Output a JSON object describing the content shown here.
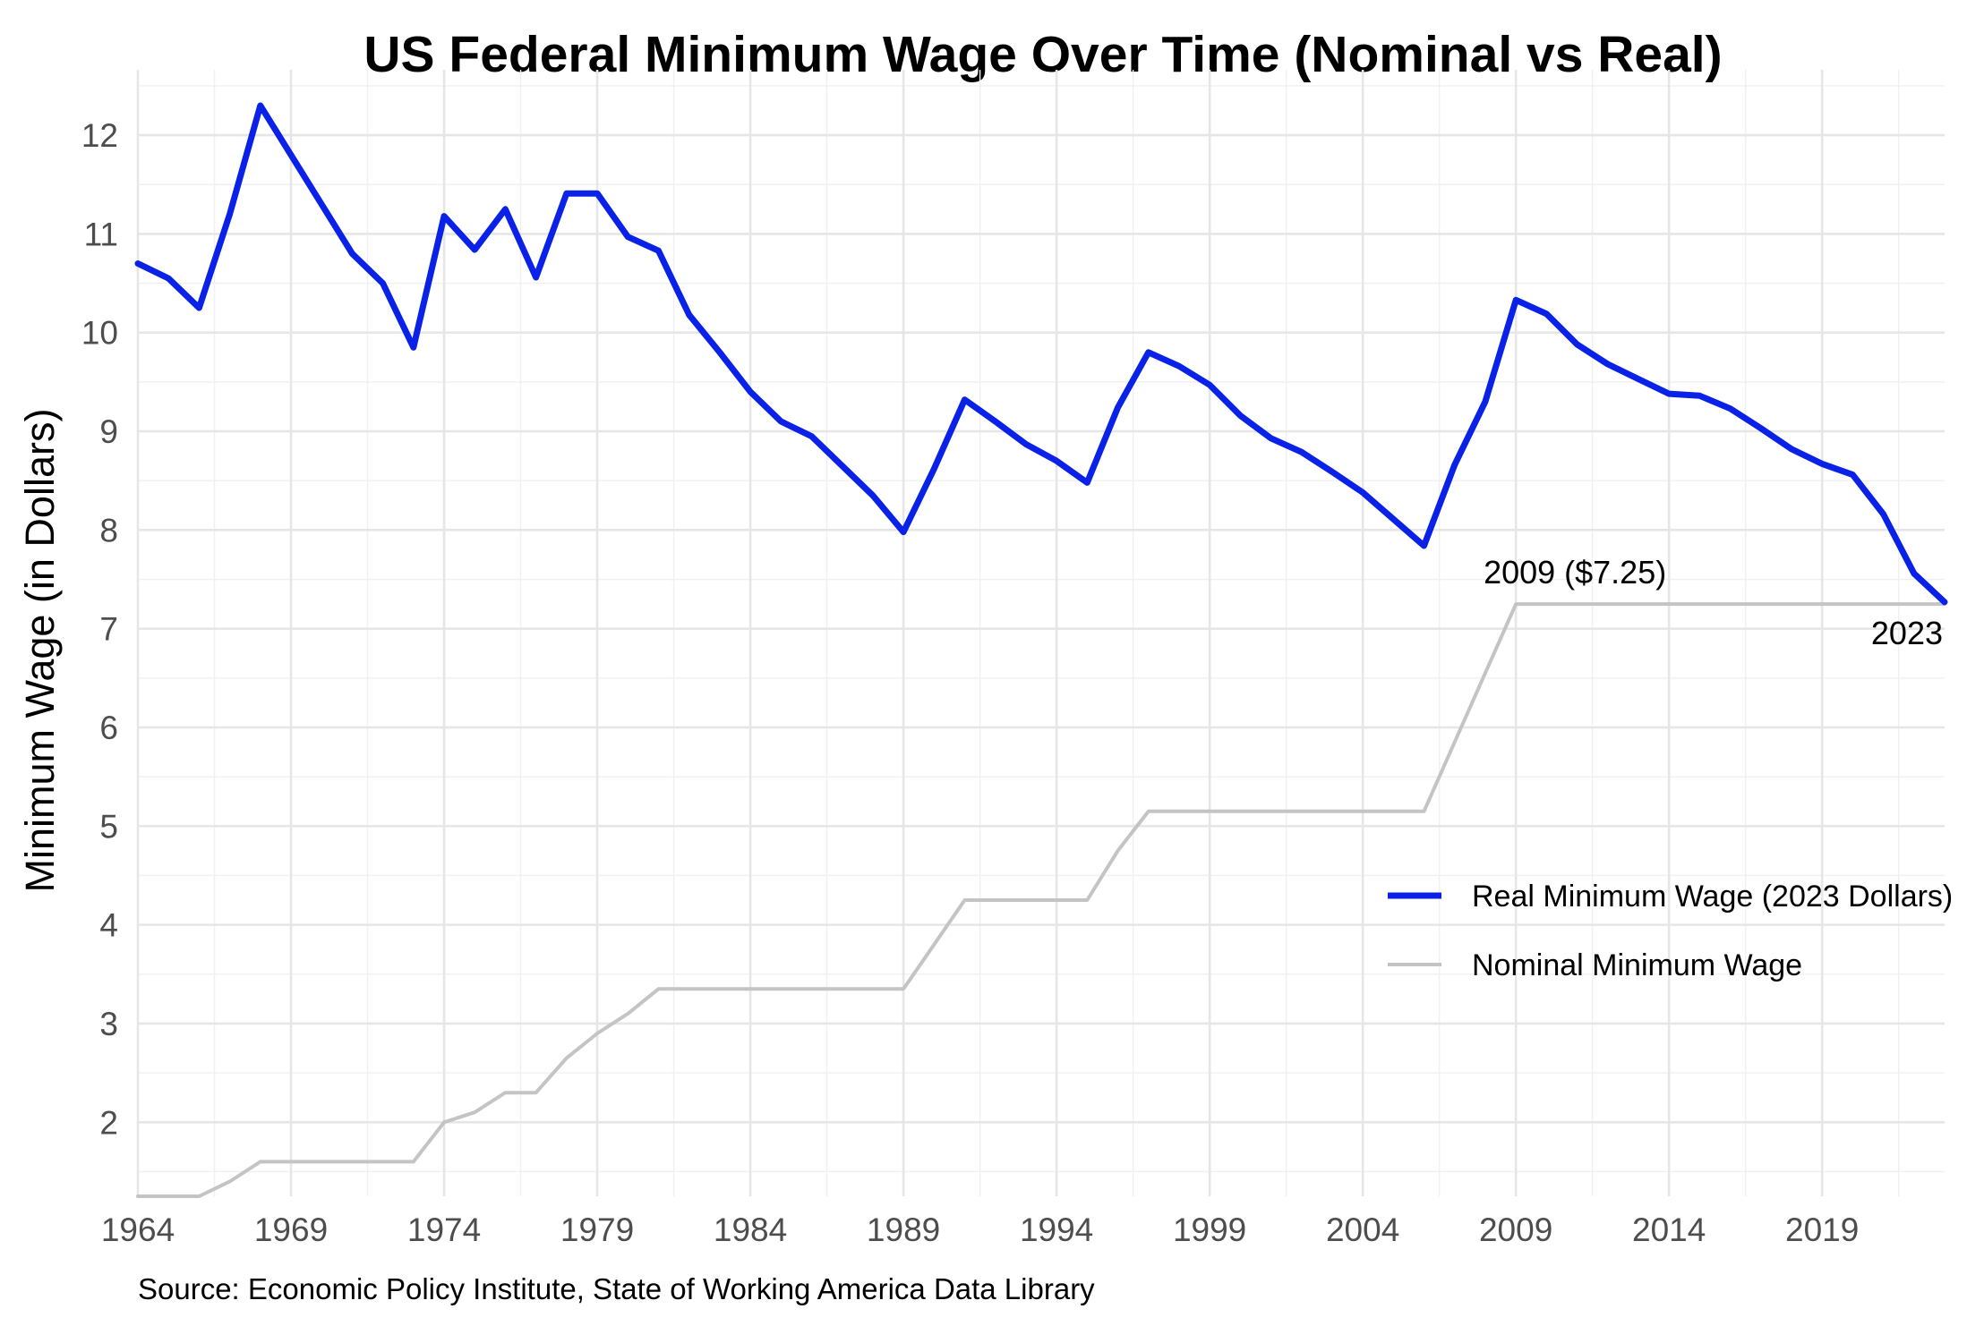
{
  "chart_data": {
    "type": "line",
    "title": "US Federal Minimum Wage Over Time (Nominal vs Real)",
    "ylabel": "Minimum Wage (in Dollars)",
    "xlabel": "",
    "caption": "Source: Economic Policy Institute, State of Working America Data Library",
    "xlim": [
      1964,
      2023
    ],
    "ylim": [
      1.25,
      12.3
    ],
    "x_ticks": [
      "1964",
      "1969",
      "1974",
      "1979",
      "1984",
      "1989",
      "1994",
      "1999",
      "2004",
      "2009",
      "2014",
      "2019"
    ],
    "y_ticks": [
      "2",
      "3",
      "4",
      "5",
      "6",
      "7",
      "8",
      "9",
      "10",
      "11",
      "12"
    ],
    "grid": true,
    "legend_position": "right",
    "x": [
      1964,
      1965,
      1966,
      1967,
      1968,
      1969,
      1970,
      1971,
      1972,
      1973,
      1974,
      1975,
      1976,
      1977,
      1978,
      1979,
      1980,
      1981,
      1982,
      1983,
      1984,
      1985,
      1986,
      1987,
      1988,
      1989,
      1990,
      1991,
      1992,
      1993,
      1994,
      1995,
      1996,
      1997,
      1998,
      1999,
      2000,
      2001,
      2002,
      2003,
      2004,
      2005,
      2006,
      2007,
      2008,
      2009,
      2010,
      2011,
      2012,
      2013,
      2014,
      2015,
      2016,
      2017,
      2018,
      2019,
      2020,
      2021,
      2022,
      2023
    ],
    "series": [
      {
        "name": "Real Minimum Wage (2023 Dollars)",
        "color": "#0a22e8",
        "values": [
          10.7,
          10.55,
          10.25,
          11.2,
          12.3,
          11.8,
          11.3,
          10.8,
          10.5,
          9.85,
          11.18,
          10.84,
          11.25,
          10.56,
          11.41,
          11.41,
          10.97,
          10.83,
          10.18,
          9.8,
          9.4,
          9.1,
          8.95,
          8.65,
          8.35,
          7.98,
          8.62,
          9.32,
          9.1,
          8.87,
          8.7,
          8.48,
          9.24,
          9.8,
          9.66,
          9.47,
          9.16,
          8.93,
          8.79,
          8.59,
          8.38,
          8.11,
          7.84,
          8.66,
          9.3,
          10.33,
          10.19,
          9.88,
          9.68,
          9.53,
          9.38,
          9.36,
          9.23,
          9.03,
          8.82,
          8.67,
          8.56,
          8.16,
          7.56,
          7.27
        ]
      },
      {
        "name": "Nominal Minimum Wage",
        "color": "#c4c4c4",
        "values": [
          1.25,
          1.25,
          1.25,
          1.4,
          1.6,
          1.6,
          1.6,
          1.6,
          1.6,
          1.6,
          2.0,
          2.1,
          2.3,
          2.3,
          2.65,
          2.9,
          3.1,
          3.35,
          3.35,
          3.35,
          3.35,
          3.35,
          3.35,
          3.35,
          3.35,
          3.35,
          3.8,
          4.25,
          4.25,
          4.25,
          4.25,
          4.25,
          4.75,
          5.15,
          5.15,
          5.15,
          5.15,
          5.15,
          5.15,
          5.15,
          5.15,
          5.15,
          5.15,
          5.85,
          6.55,
          7.25,
          7.25,
          7.25,
          7.25,
          7.25,
          7.25,
          7.25,
          7.25,
          7.25,
          7.25,
          7.25,
          7.25,
          7.25,
          7.25,
          7.25
        ]
      }
    ],
    "annotations": [
      {
        "text": "2009 ($7.25)",
        "x": 2009,
        "y": 7.25,
        "placement": "above"
      },
      {
        "text": "2023",
        "x": 2023,
        "y": 7.25,
        "placement": "below-left"
      }
    ]
  }
}
